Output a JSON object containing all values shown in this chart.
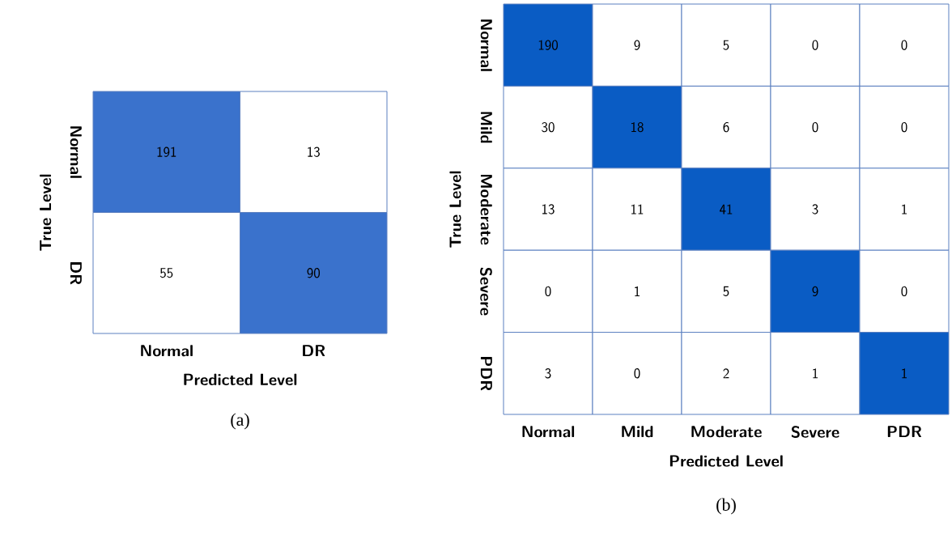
{
  "chart_data": [
    {
      "type": "heatmap",
      "xlabel": "Predicted Level",
      "ylabel": "True Level",
      "categories": [
        "Normal",
        "DR"
      ],
      "y_categories": [
        "Normal",
        "DR"
      ],
      "cells": [
        [
          191,
          13
        ],
        [
          55,
          90
        ]
      ],
      "data_labels": true,
      "color": "#3a72cc",
      "annotations": [
        "(a)"
      ]
    },
    {
      "type": "heatmap",
      "xlabel": "Predicted Level",
      "ylabel": "True Level",
      "categories": [
        "Normal",
        "Mild",
        "Moderate",
        "Severe",
        "PDR"
      ],
      "y_categories": [
        "Normal",
        "Mild",
        "Moderate",
        "Severe",
        "PDR"
      ],
      "cells": [
        [
          190,
          9,
          5,
          0,
          0
        ],
        [
          30,
          18,
          6,
          0,
          0
        ],
        [
          13,
          11,
          41,
          3,
          1
        ],
        [
          0,
          1,
          5,
          9,
          0
        ],
        [
          3,
          0,
          2,
          1,
          1
        ]
      ],
      "data_labels": true,
      "color": "#0a5cc4",
      "annotations": [
        "(b)"
      ]
    }
  ]
}
